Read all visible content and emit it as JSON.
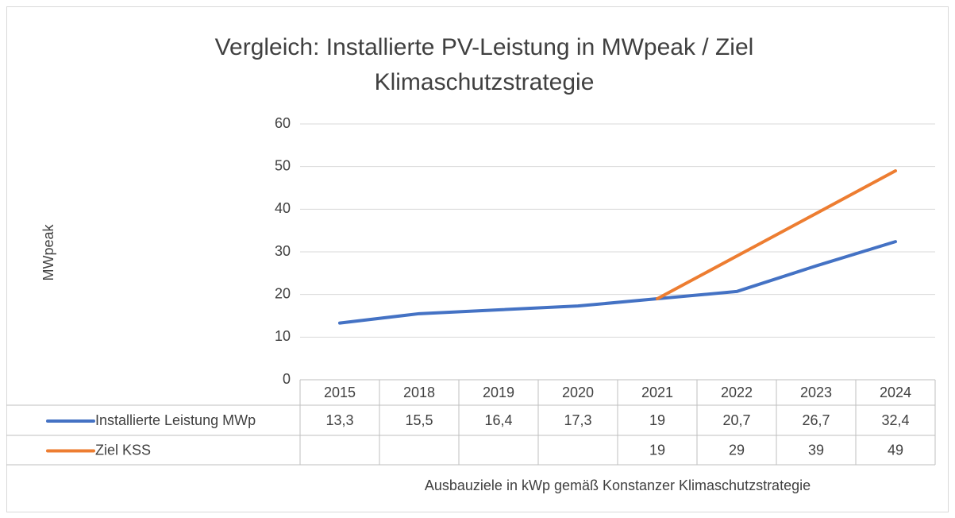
{
  "chart_data": {
    "type": "line",
    "title": "Vergleich: Installierte PV-Leistung in MWpeak / Ziel Klimaschutzstrategie",
    "y_label": "MWpeak",
    "x_label": "Ausbauziele in kWp gemäß Konstanzer Klimaschutzstrategie",
    "categories": [
      "2015",
      "2018",
      "2019",
      "2020",
      "2021",
      "2022",
      "2023",
      "2024"
    ],
    "series": [
      {
        "name": "Installierte Leistung MWp",
        "color": "#4472c4",
        "values": [
          13.3,
          15.5,
          16.4,
          17.3,
          19,
          20.7,
          26.7,
          32.4
        ],
        "value_labels": [
          "13,3",
          "15,5",
          "16,4",
          "17,3",
          "19",
          "20,7",
          "26,7",
          "32,4"
        ]
      },
      {
        "name": "Ziel KSS",
        "color": "#ed7d31",
        "values": [
          null,
          null,
          null,
          null,
          19,
          29,
          39,
          49
        ]
      }
    ],
    "ylim": [
      0,
      60
    ],
    "yticks": [
      0,
      10,
      20,
      30,
      40,
      50,
      60
    ],
    "grid": true
  }
}
